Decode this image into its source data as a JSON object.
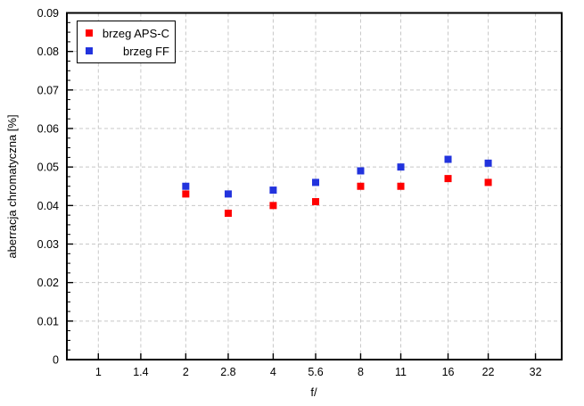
{
  "chart_data": {
    "type": "scatter",
    "title": "",
    "xlabel": "f/",
    "ylabel": "aberracja chromatyczna [%]",
    "xscale": "log2",
    "x_range_log2": [
      -0.36,
      5.3
    ],
    "x_ticks": [
      1,
      1.4,
      2,
      2.8,
      4,
      5.6,
      8,
      11,
      16,
      22,
      32
    ],
    "x_tick_labels": [
      "1",
      "1.4",
      "2",
      "2.8",
      "4",
      "5.6",
      "8",
      "11",
      "16",
      "22",
      "32"
    ],
    "ylim": [
      0,
      0.09
    ],
    "y_tick_step": 0.01,
    "y_minor_step": 0.0025,
    "y_tick_labels": [
      "0",
      "0.01",
      "0.02",
      "0.03",
      "0.04",
      "0.05",
      "0.06",
      "0.07",
      "0.08",
      "0.09"
    ],
    "grid": true,
    "legend_position": "top-left",
    "x": [
      2,
      2.8,
      4,
      5.6,
      8,
      11,
      16,
      22
    ],
    "series": [
      {
        "name": "brzeg APS-C",
        "marker": "square",
        "color": "#ff0000",
        "values": [
          0.043,
          0.038,
          0.04,
          0.041,
          0.045,
          0.045,
          0.047,
          0.046
        ]
      },
      {
        "name": "brzeg FF",
        "marker": "square",
        "color": "#2233dd",
        "values": [
          0.045,
          0.043,
          0.044,
          0.046,
          0.049,
          0.05,
          0.052,
          0.051
        ]
      }
    ],
    "colors": {
      "background": "#ffffff",
      "grid": "#c8c8c8",
      "border": "#000000",
      "text": "#000000"
    }
  }
}
